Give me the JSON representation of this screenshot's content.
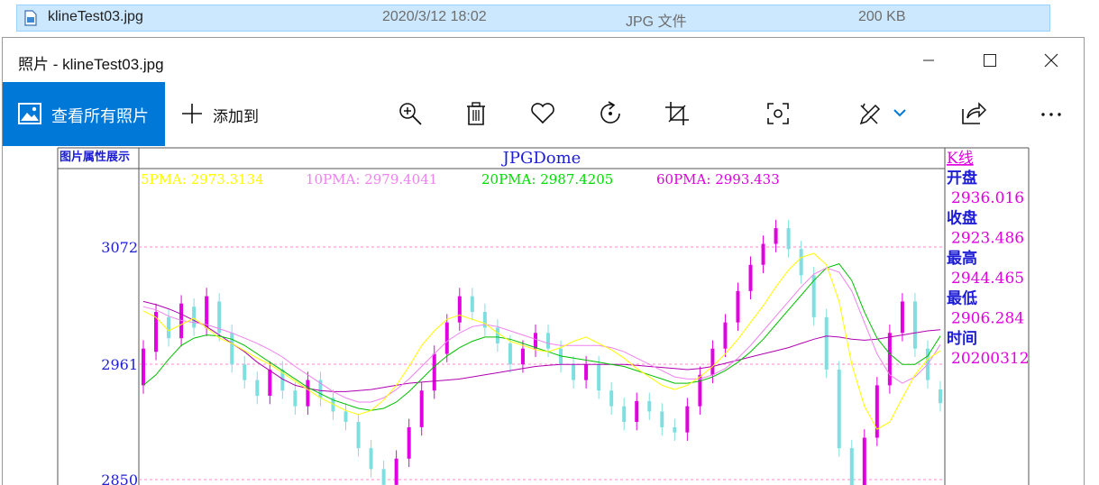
{
  "explorer_row": {
    "name": "klineTest03.jpg",
    "date": "2020/3/12 18:02",
    "type": "JPG 文件",
    "size": "200 KB"
  },
  "window": {
    "title": "照片 - klineTest03.jpg",
    "view_all_label": "查看所有照片",
    "add_to_label": "添加到",
    "icons": [
      "zoom-in-icon",
      "delete-icon",
      "favorite-icon",
      "rotate-icon",
      "crop-icon",
      "enhance-icon",
      "edit-icon",
      "share-icon",
      "more-icon"
    ]
  },
  "chart_data": {
    "type": "candlestick",
    "left_panel_label": "图片属性展示",
    "title": "JPGDome",
    "ma_labels": [
      {
        "text": "5PMA: 2973.3134",
        "color": "#ffff00"
      },
      {
        "text": "10PMA: 2979.4041",
        "color": "#ee82ee"
      },
      {
        "text": "20PMA: 2987.4205",
        "color": "#00dd00"
      },
      {
        "text": "60PMA: 2993.433",
        "color": "#dd00dd"
      }
    ],
    "y_ticks": [
      "3072",
      "2961",
      "2850"
    ],
    "info": {
      "heading": "K线",
      "items": [
        {
          "label": "开盘",
          "value": "2936.016"
        },
        {
          "label": "收盘",
          "value": "2923.486"
        },
        {
          "label": "最高",
          "value": "2944.465"
        },
        {
          "label": "最低",
          "value": "2906.284"
        },
        {
          "label": "时间",
          "value": "20200312"
        }
      ]
    },
    "colors": {
      "up": "#e000e0",
      "down": "#7fdfe0",
      "title": "#1d1dd6",
      "ma5": "#ffff00",
      "ma10": "#ee82ee",
      "ma20": "#00c000",
      "ma60": "#b000b0"
    },
    "series": {
      "ma5": [
        3011,
        3005,
        2992,
        2998,
        3004,
        2995,
        2985,
        2980,
        2973,
        2966,
        2960,
        2952,
        2944,
        2936,
        2928,
        2922,
        2916,
        2912,
        2916,
        2926,
        2940,
        2958,
        2978,
        2992,
        3003,
        3007,
        3003,
        2999,
        2990,
        2982,
        2978,
        2974,
        2972,
        2976,
        2982,
        2986,
        2980,
        2974,
        2966,
        2956,
        2948,
        2940,
        2936,
        2940,
        2948,
        2958,
        2970,
        2984,
        3000,
        3016,
        3034,
        3050,
        3062,
        3066,
        3055,
        3020,
        2960,
        2920,
        2898,
        2905,
        2928,
        2950,
        2965,
        2973
      ],
      "ma10": [
        3015,
        3012,
        3006,
        3002,
        3000,
        2998,
        2994,
        2990,
        2985,
        2980,
        2974,
        2967,
        2958,
        2950,
        2942,
        2934,
        2928,
        2924,
        2924,
        2928,
        2936,
        2946,
        2958,
        2970,
        2982,
        2990,
        2996,
        2998,
        2996,
        2992,
        2988,
        2984,
        2980,
        2978,
        2978,
        2978,
        2978,
        2976,
        2972,
        2966,
        2960,
        2954,
        2948,
        2946,
        2946,
        2950,
        2956,
        2966,
        2978,
        2992,
        3006,
        3020,
        3034,
        3046,
        3052,
        3048,
        3030,
        3000,
        2970,
        2950,
        2942,
        2948,
        2960,
        2979
      ],
      "ma20": [
        2940,
        2950,
        2965,
        2978,
        2985,
        2988,
        2987,
        2984,
        2978,
        2970,
        2962,
        2954,
        2946,
        2938,
        2932,
        2926,
        2922,
        2918,
        2916,
        2918,
        2924,
        2934,
        2946,
        2958,
        2968,
        2976,
        2982,
        2986,
        2986,
        2984,
        2980,
        2976,
        2972,
        2968,
        2966,
        2964,
        2962,
        2960,
        2958,
        2954,
        2950,
        2946,
        2942,
        2942,
        2944,
        2948,
        2954,
        2962,
        2972,
        2984,
        2998,
        3012,
        3026,
        3040,
        3052,
        3056,
        3040,
        3010,
        2985,
        2970,
        2960,
        2960,
        2968,
        2987
      ],
      "ma60": [
        3020,
        3017,
        3013,
        3008,
        3002,
        2996,
        2988,
        2980,
        2972,
        2962,
        2954,
        2946,
        2940,
        2937,
        2935,
        2934,
        2934,
        2935,
        2936,
        2938,
        2940,
        2942,
        2943,
        2944,
        2945,
        2946,
        2948,
        2950,
        2952,
        2954,
        2956,
        2958,
        2959,
        2960,
        2960,
        2960,
        2960,
        2960,
        2960,
        2959,
        2958,
        2957,
        2956,
        2955,
        2956,
        2958,
        2961,
        2964,
        2967,
        2970,
        2973,
        2976,
        2980,
        2984,
        2987,
        2986,
        2984,
        2983,
        2984,
        2986,
        2988,
        2990,
        2992,
        2993
      ],
      "candles": [
        {
          "o": 2940,
          "c": 2975
        },
        {
          "o": 2972,
          "c": 3010
        },
        {
          "o": 3005,
          "c": 2985
        },
        {
          "o": 2985,
          "c": 3018
        },
        {
          "o": 3015,
          "c": 2995
        },
        {
          "o": 2995,
          "c": 3025
        },
        {
          "o": 3020,
          "c": 2990
        },
        {
          "o": 2990,
          "c": 2960
        },
        {
          "o": 2960,
          "c": 2945
        },
        {
          "o": 2945,
          "c": 2930
        },
        {
          "o": 2930,
          "c": 2955
        },
        {
          "o": 2955,
          "c": 2935
        },
        {
          "o": 2935,
          "c": 2920
        },
        {
          "o": 2920,
          "c": 2945
        },
        {
          "o": 2945,
          "c": 2928
        },
        {
          "o": 2928,
          "c": 2915
        },
        {
          "o": 2915,
          "c": 2905
        },
        {
          "o": 2905,
          "c": 2880
        },
        {
          "o": 2880,
          "c": 2860
        },
        {
          "o": 2860,
          "c": 2845
        },
        {
          "o": 2845,
          "c": 2870
        },
        {
          "o": 2870,
          "c": 2900
        },
        {
          "o": 2900,
          "c": 2935
        },
        {
          "o": 2935,
          "c": 2970
        },
        {
          "o": 2970,
          "c": 3000
        },
        {
          "o": 3000,
          "c": 3025
        },
        {
          "o": 3025,
          "c": 3010
        },
        {
          "o": 3010,
          "c": 2995
        },
        {
          "o": 2995,
          "c": 2980
        },
        {
          "o": 2980,
          "c": 2960
        },
        {
          "o": 2960,
          "c": 2975
        },
        {
          "o": 2975,
          "c": 2990
        },
        {
          "o": 2990,
          "c": 2975
        },
        {
          "o": 2975,
          "c": 2960
        },
        {
          "o": 2960,
          "c": 2945
        },
        {
          "o": 2945,
          "c": 2960
        },
        {
          "o": 2960,
          "c": 2935
        },
        {
          "o": 2935,
          "c": 2920
        },
        {
          "o": 2920,
          "c": 2905
        },
        {
          "o": 2905,
          "c": 2925
        },
        {
          "o": 2925,
          "c": 2915
        },
        {
          "o": 2915,
          "c": 2900
        },
        {
          "o": 2900,
          "c": 2895
        },
        {
          "o": 2895,
          "c": 2920
        },
        {
          "o": 2920,
          "c": 2950
        },
        {
          "o": 2950,
          "c": 2975
        },
        {
          "o": 2975,
          "c": 3000
        },
        {
          "o": 3000,
          "c": 3030
        },
        {
          "o": 3030,
          "c": 3055
        },
        {
          "o": 3055,
          "c": 3075
        },
        {
          "o": 3075,
          "c": 3090
        },
        {
          "o": 3090,
          "c": 3070
        },
        {
          "o": 3070,
          "c": 3045
        },
        {
          "o": 3045,
          "c": 3005
        },
        {
          "o": 3005,
          "c": 2955
        },
        {
          "o": 2955,
          "c": 2880
        },
        {
          "o": 2880,
          "c": 2840
        },
        {
          "o": 2840,
          "c": 2890
        },
        {
          "o": 2890,
          "c": 2940
        },
        {
          "o": 2940,
          "c": 2990
        },
        {
          "o": 2990,
          "c": 3020
        },
        {
          "o": 3020,
          "c": 2975
        },
        {
          "o": 2975,
          "c": 2945
        },
        {
          "o": 2936,
          "c": 2923
        }
      ]
    }
  }
}
